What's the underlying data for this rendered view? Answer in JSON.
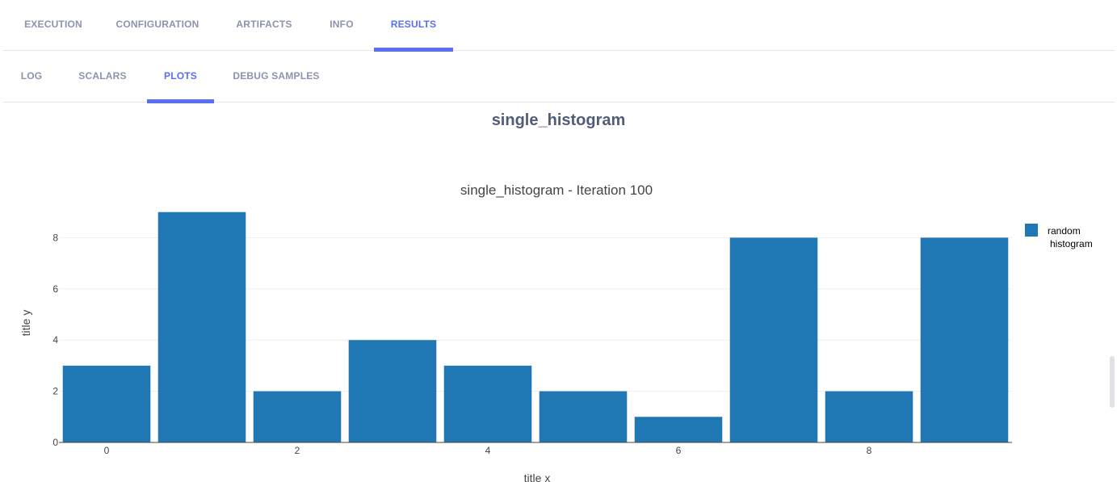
{
  "tabs": {
    "top": [
      "EXECUTION",
      "CONFIGURATION",
      "ARTIFACTS",
      "INFO",
      "RESULTS"
    ],
    "top_active": "RESULTS",
    "sub": [
      "LOG",
      "SCALARS",
      "PLOTS",
      "DEBUG SAMPLES"
    ],
    "sub_active": "PLOTS"
  },
  "accent_color": "#5a6ef5",
  "section_title": "single_histogram",
  "chart_data": {
    "type": "bar",
    "title": "single_histogram - Iteration 100",
    "xlabel": "title x",
    "ylabel": "title y",
    "x": [
      0,
      1,
      2,
      3,
      4,
      5,
      6,
      7,
      8,
      9
    ],
    "values": [
      3,
      9,
      2,
      4,
      3,
      2,
      1,
      8,
      2,
      8
    ],
    "series_name": "random histogram",
    "series_name_lines": [
      "random",
      "histogram"
    ],
    "color": "#1f77b4",
    "ylim": [
      0,
      9.4
    ],
    "yticks": [
      0,
      2,
      4,
      6,
      8
    ],
    "xticks": [
      0,
      2,
      4,
      6,
      8
    ],
    "grid": true,
    "legend_position": "top-right"
  }
}
